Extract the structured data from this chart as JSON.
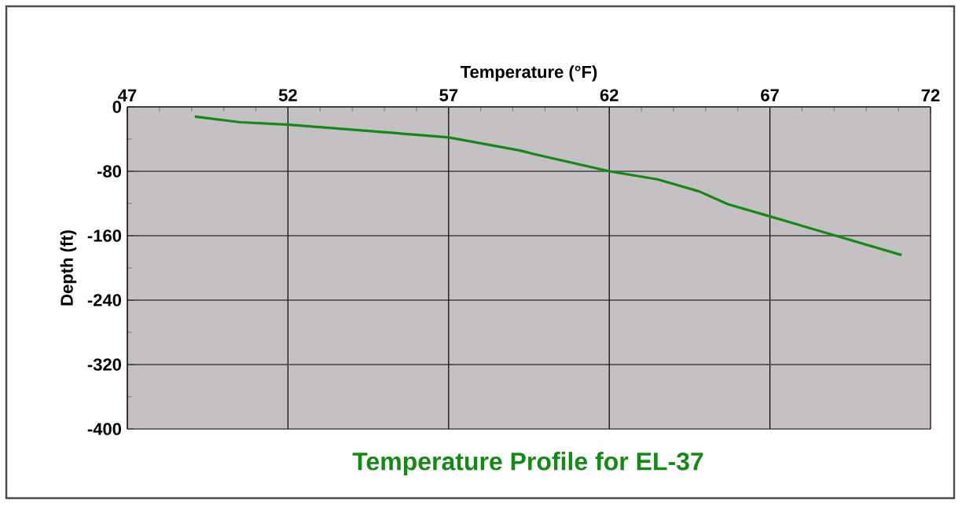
{
  "chart_data": {
    "type": "line",
    "title": "Temperature Profile for EL-37",
    "xlabel": "Temperature (°F)",
    "ylabel": "Depth (ft)",
    "x": [
      49.1,
      50.5,
      52,
      56.1,
      57,
      59.2,
      59.7,
      62,
      63.5,
      64.8,
      65.7,
      67,
      69.3,
      71.1
    ],
    "series": [
      {
        "color": "#138a13",
        "values": [
          -12,
          -19,
          -22,
          -35,
          -38,
          -54,
          -59,
          -80,
          -90,
          -105,
          -121,
          -136,
          -163,
          -184
        ]
      }
    ],
    "xlim": [
      47,
      72
    ],
    "xticks": [
      47,
      52,
      57,
      62,
      67,
      72
    ],
    "ylim": [
      -400,
      0
    ],
    "yticks": [
      -400,
      -320,
      -240,
      -160,
      -80,
      0
    ],
    "grid": true,
    "marker": "none",
    "line_style": "solid"
  }
}
